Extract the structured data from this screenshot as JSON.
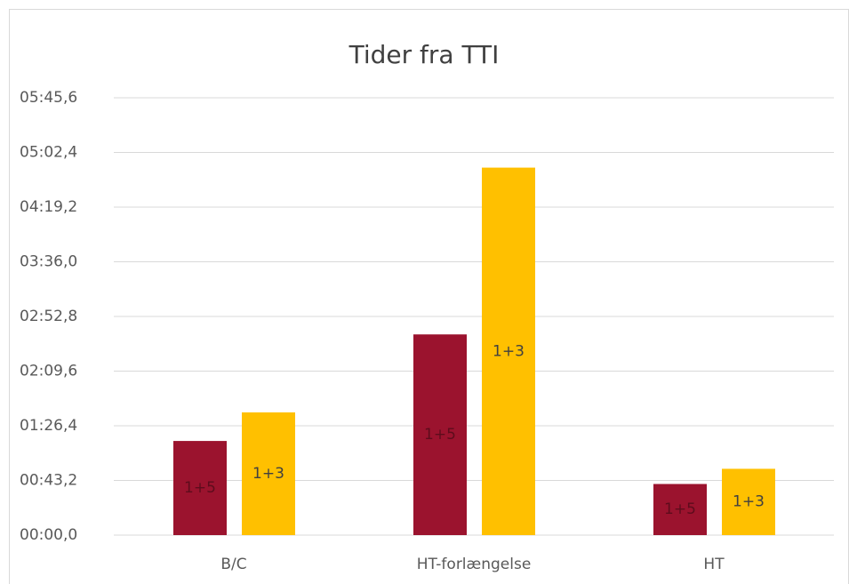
{
  "chart_data": {
    "type": "bar",
    "title": "Tider fra TTI",
    "categories": [
      "B/C",
      "HT-forlængelse",
      "HT"
    ],
    "series": [
      {
        "name": "1+5",
        "color": "#9b132e",
        "values": [
          74.4,
          158.6,
          40.4
        ]
      },
      {
        "name": "1+3",
        "color": "#ffc000",
        "values": [
          97.0,
          290.4,
          52.4
        ]
      }
    ],
    "ylim": [
      0,
      345.6
    ],
    "yticks": [
      {
        "value": 0,
        "label": "00:00,0"
      },
      {
        "value": 43.2,
        "label": "00:43,2"
      },
      {
        "value": 86.4,
        "label": "01:26,4"
      },
      {
        "value": 129.6,
        "label": "02:09,6"
      },
      {
        "value": 172.8,
        "label": "02:52,8"
      },
      {
        "value": 216,
        "label": "03:36,0"
      },
      {
        "value": 259.2,
        "label": "04:19,2"
      },
      {
        "value": 302.4,
        "label": "05:02,4"
      },
      {
        "value": 345.6,
        "label": "05:45,6"
      }
    ],
    "grid": true
  }
}
